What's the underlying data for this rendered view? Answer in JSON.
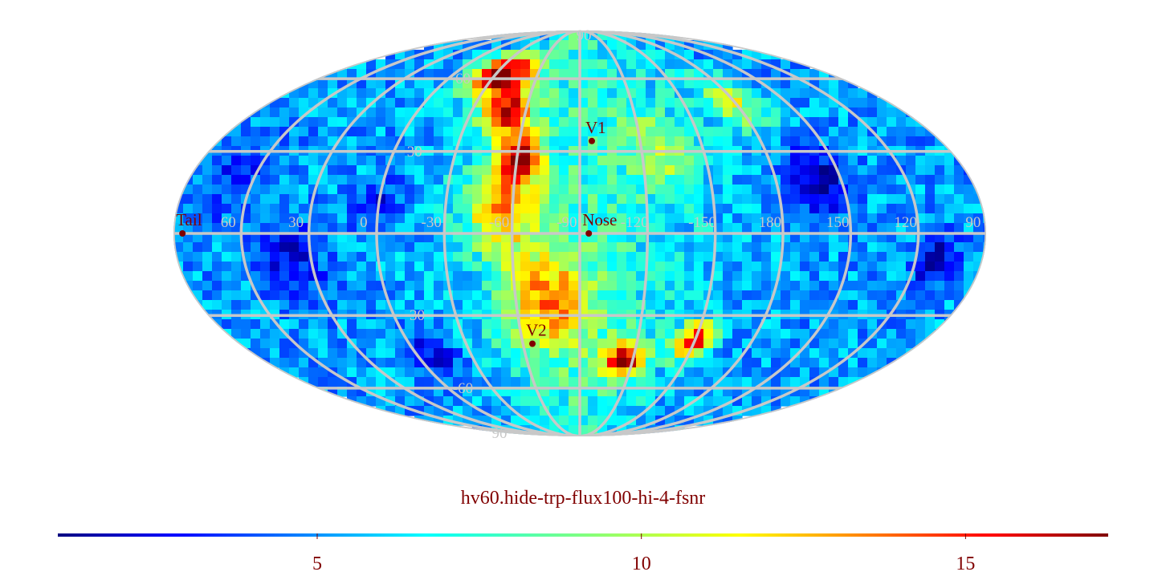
{
  "chart_data": {
    "type": "heatmap",
    "projection": "mollweide",
    "subtitle": "hv60.hide-trp-flux100-hi-4-fsnr",
    "colormap": "jet",
    "colorbar": {
      "range": [
        1,
        17.2
      ],
      "ticks": [
        "5",
        "10",
        "15"
      ],
      "tick_values": [
        5,
        10,
        15
      ],
      "placement": "bottom"
    },
    "grid": true,
    "grid_color": "#c8c8c8",
    "longitude_labels": [
      {
        "text": "60",
        "lon": 60
      },
      {
        "text": "30",
        "lon": 30
      },
      {
        "text": "0",
        "lon": 0
      },
      {
        "text": "-30",
        "lon": -30
      },
      {
        "text": "-60",
        "lon": -60
      },
      {
        "text": "-90",
        "lon": -90
      },
      {
        "text": "-120",
        "lon": -120
      },
      {
        "text": "-150",
        "lon": -150
      },
      {
        "text": "180",
        "lon": 180
      },
      {
        "text": "150",
        "lon": 150
      },
      {
        "text": "120",
        "lon": 120
      },
      {
        "text": "90",
        "lon": 90
      }
    ],
    "latitude_labels": [
      {
        "text": "90",
        "lat": 90
      },
      {
        "text": "60",
        "lat": 60
      },
      {
        "text": "30",
        "lat": 30
      },
      {
        "text": "-30",
        "lat": -30
      },
      {
        "text": "-60",
        "lat": -60
      },
      {
        "text": "90",
        "lat": -90
      }
    ],
    "markers": [
      {
        "label": "V1",
        "lon": -106,
        "lat": 34
      },
      {
        "label": "Nose",
        "lon": -104,
        "lat": 0
      },
      {
        "label": "V2",
        "lon": -75,
        "lat": -41
      },
      {
        "label": "Tail",
        "lon": 76,
        "lat": 0
      }
    ],
    "hotspots": [
      {
        "lon": -45,
        "lat": 62,
        "value": 16.5,
        "spread": 10
      },
      {
        "lon": -60,
        "lat": 45,
        "value": 15.2,
        "spread": 9
      },
      {
        "lon": -72,
        "lat": 28,
        "value": 15.5,
        "spread": 8
      },
      {
        "lon": -65,
        "lat": 10,
        "value": 11.5,
        "spread": 16
      },
      {
        "lon": -85,
        "lat": -25,
        "value": 11.5,
        "spread": 18
      },
      {
        "lon": -125,
        "lat": -47,
        "value": 15.5,
        "spread": 7
      },
      {
        "lon": -160,
        "lat": -40,
        "value": 15.0,
        "spread": 7
      },
      {
        "lon": -140,
        "lat": 30,
        "value": 9.0,
        "spread": 14
      },
      {
        "lon": 170,
        "lat": 50,
        "value": 10.0,
        "spread": 12
      }
    ],
    "coldspots": [
      {
        "lon": 150,
        "lat": 20,
        "value": 1.5,
        "spread": 12
      },
      {
        "lon": 100,
        "lat": -10,
        "value": 2.0,
        "spread": 10
      },
      {
        "lon": 30,
        "lat": -10,
        "value": 2.5,
        "spread": 14
      },
      {
        "lon": -10,
        "lat": 10,
        "value": 3.0,
        "spread": 10
      },
      {
        "lon": -20,
        "lat": -45,
        "value": 2.5,
        "spread": 10
      },
      {
        "lon": 60,
        "lat": 20,
        "value": 3.5,
        "spread": 14
      }
    ]
  }
}
